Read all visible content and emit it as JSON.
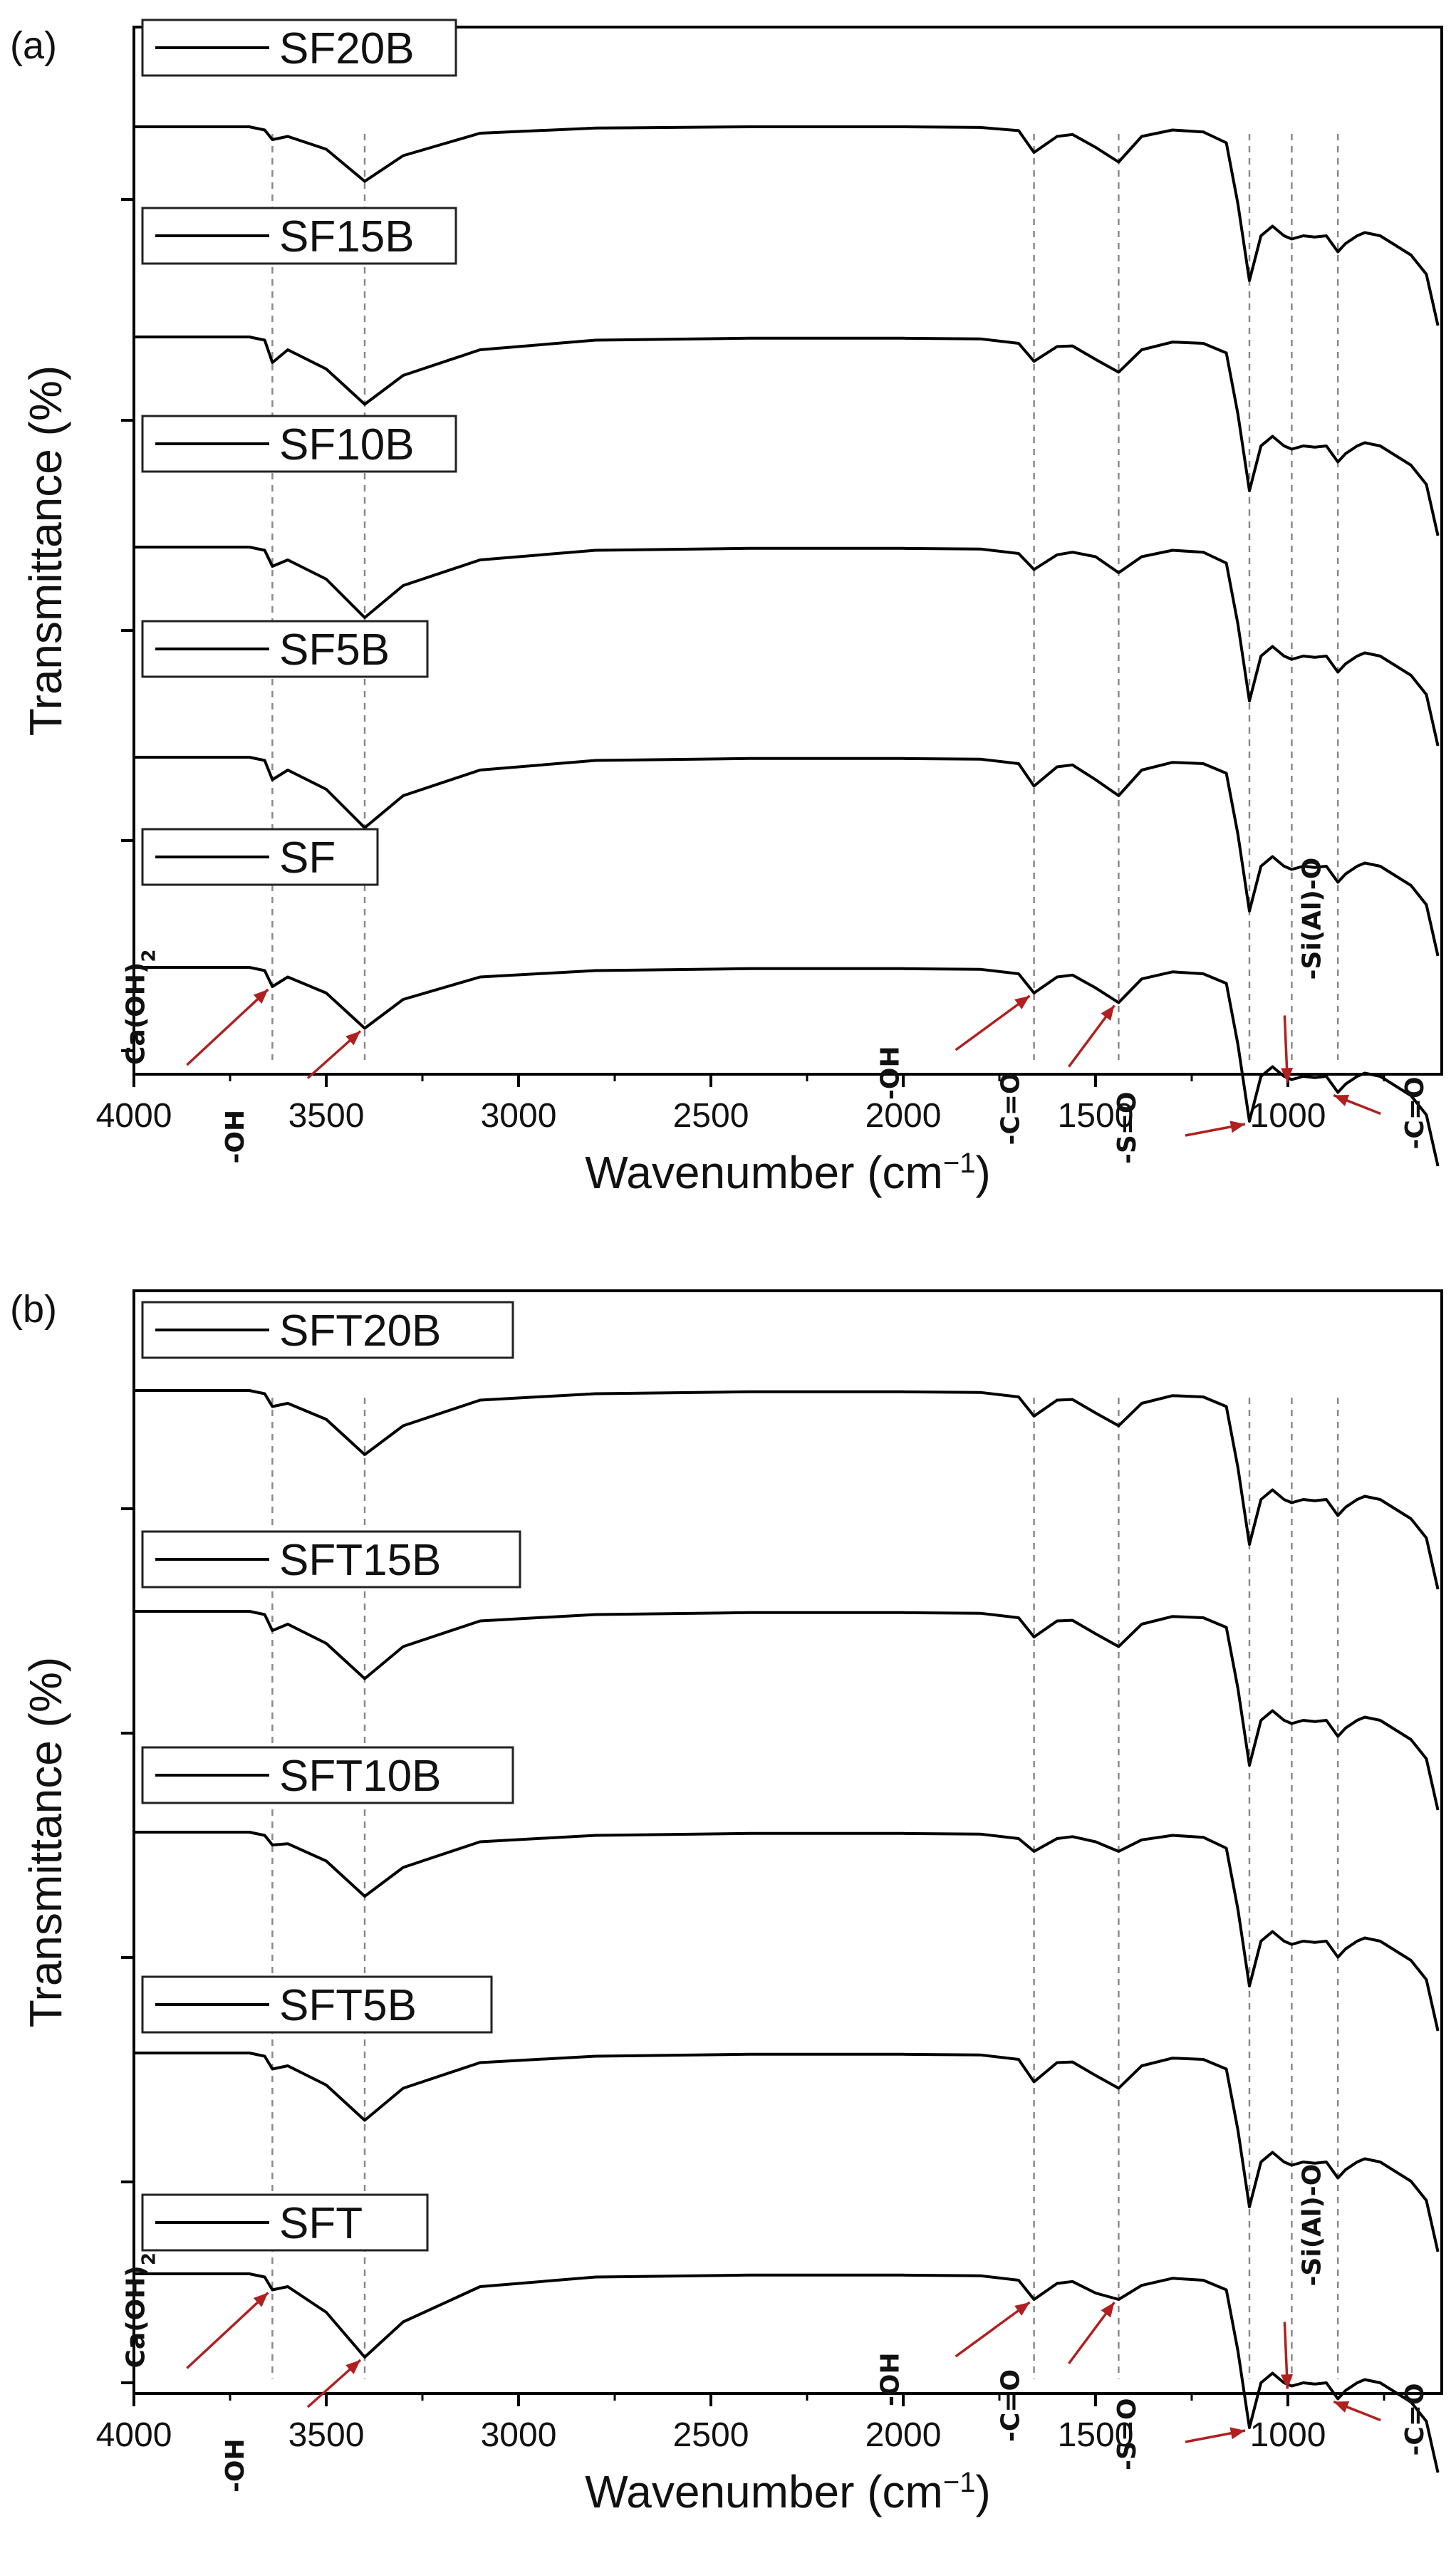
{
  "chart_data": [
    {
      "type": "line",
      "panel_label": "(a)",
      "xlabel": "Wavenumber (cm",
      "xlabel_sup": "−1",
      "xlabel_tail": ")",
      "ylabel": "Transmittance (%)",
      "xlim": [
        4000,
        600
      ],
      "x_reversed": true,
      "x_ticks": [
        "4000",
        "3500",
        "3000",
        "2500",
        "2000",
        "1500",
        "1000"
      ],
      "x_tick_values": [
        4000,
        3500,
        3000,
        2500,
        2000,
        1500,
        1000
      ],
      "legend_placement": "upper-left of each trace",
      "reference_lines_cm1": [
        3640,
        3400,
        1660,
        1440,
        1100,
        990,
        870
      ],
      "series": [
        {
          "name": "SF20B",
          "x": [
            4000,
            3700,
            3660,
            3640,
            3600,
            3500,
            3400,
            3300,
            3100,
            2800,
            2400,
            2000,
            1800,
            1700,
            1660,
            1600,
            1560,
            1500,
            1440,
            1380,
            1300,
            1220,
            1160,
            1130,
            1100,
            1070,
            1040,
            1010,
            990,
            960,
            930,
            900,
            870,
            850,
            820,
            800,
            760,
            720,
            680,
            640,
            610
          ],
          "y": [
            97.0,
            97.0,
            96.5,
            95.0,
            95.5,
            93.5,
            88.5,
            92.5,
            96.0,
            96.8,
            97.0,
            97.0,
            96.9,
            96.4,
            93.0,
            95.5,
            95.8,
            93.8,
            91.5,
            95.5,
            96.5,
            96.2,
            94.5,
            85.0,
            73.0,
            80.0,
            81.5,
            80.0,
            79.5,
            80.0,
            79.8,
            80.0,
            77.5,
            78.8,
            80.0,
            80.5,
            80.0,
            78.5,
            77.0,
            74.0,
            66.0
          ]
        },
        {
          "name": "SF15B",
          "x": [
            4000,
            3700,
            3660,
            3640,
            3600,
            3500,
            3400,
            3300,
            3100,
            2800,
            2400,
            2000,
            1800,
            1700,
            1660,
            1600,
            1560,
            1500,
            1440,
            1380,
            1300,
            1220,
            1160,
            1130,
            1100,
            1070,
            1040,
            1010,
            990,
            960,
            930,
            900,
            870,
            850,
            820,
            800,
            760,
            720,
            680,
            640,
            610
          ],
          "y": [
            97.0,
            97.0,
            96.5,
            93.0,
            95.0,
            92.0,
            86.5,
            91.0,
            95.0,
            96.5,
            96.8,
            96.8,
            96.7,
            96.0,
            93.2,
            95.5,
            95.6,
            93.5,
            91.5,
            95.0,
            96.2,
            96.0,
            94.5,
            85.0,
            73.0,
            80.0,
            81.5,
            80.0,
            79.5,
            80.0,
            79.8,
            80.0,
            77.5,
            78.8,
            80.0,
            80.5,
            80.0,
            78.5,
            77.0,
            74.0,
            66.0
          ]
        },
        {
          "name": "SF10B",
          "x": [
            4000,
            3700,
            3660,
            3640,
            3600,
            3500,
            3400,
            3300,
            3100,
            2800,
            2400,
            2000,
            1800,
            1700,
            1660,
            1600,
            1560,
            1500,
            1440,
            1380,
            1300,
            1220,
            1160,
            1130,
            1100,
            1070,
            1040,
            1010,
            990,
            960,
            930,
            900,
            870,
            850,
            820,
            800,
            760,
            720,
            680,
            640,
            610
          ],
          "y": [
            97.0,
            97.0,
            96.5,
            94.0,
            95.0,
            92.0,
            86.0,
            91.0,
            95.0,
            96.5,
            96.8,
            96.8,
            96.7,
            96.0,
            93.5,
            95.8,
            96.2,
            95.5,
            93.0,
            95.5,
            96.5,
            96.2,
            94.5,
            85.0,
            73.0,
            80.0,
            81.5,
            80.0,
            79.5,
            80.0,
            79.8,
            80.0,
            77.5,
            78.8,
            80.0,
            80.5,
            80.0,
            78.5,
            77.0,
            74.0,
            66.0
          ]
        },
        {
          "name": "SF5B",
          "x": [
            4000,
            3700,
            3660,
            3640,
            3600,
            3500,
            3400,
            3300,
            3100,
            2800,
            2400,
            2000,
            1800,
            1700,
            1660,
            1600,
            1560,
            1500,
            1440,
            1380,
            1300,
            1220,
            1160,
            1130,
            1100,
            1070,
            1040,
            1010,
            990,
            960,
            930,
            900,
            870,
            850,
            820,
            800,
            760,
            720,
            680,
            640,
            610
          ],
          "y": [
            97.0,
            97.0,
            96.5,
            93.5,
            95.0,
            92.0,
            86.0,
            91.0,
            95.0,
            96.5,
            96.8,
            96.8,
            96.7,
            96.0,
            92.5,
            95.5,
            95.8,
            93.5,
            91.0,
            95.0,
            96.2,
            96.0,
            94.5,
            85.0,
            73.0,
            80.0,
            81.5,
            80.0,
            79.5,
            80.0,
            79.8,
            80.0,
            77.5,
            78.8,
            80.0,
            80.5,
            80.0,
            78.5,
            77.0,
            74.0,
            66.0
          ]
        },
        {
          "name": "SF",
          "x": [
            4000,
            3700,
            3660,
            3640,
            3600,
            3500,
            3400,
            3300,
            3100,
            2800,
            2400,
            2000,
            1800,
            1700,
            1660,
            1600,
            1560,
            1500,
            1440,
            1380,
            1300,
            1220,
            1160,
            1130,
            1100,
            1070,
            1040,
            1010,
            990,
            960,
            930,
            900,
            870,
            850,
            820,
            800,
            760,
            720,
            680,
            640,
            610
          ],
          "y": [
            97.0,
            97.0,
            96.5,
            94.0,
            95.5,
            93.0,
            87.5,
            92.0,
            95.5,
            96.5,
            96.8,
            96.8,
            96.7,
            96.0,
            93.0,
            95.5,
            95.8,
            93.8,
            91.5,
            95.2,
            96.3,
            96.0,
            94.5,
            85.0,
            73.0,
            80.0,
            81.5,
            80.0,
            79.5,
            80.0,
            79.8,
            80.0,
            77.5,
            78.8,
            80.0,
            80.5,
            80.0,
            78.5,
            77.0,
            74.0,
            66.0
          ]
        }
      ],
      "annotations": [
        {
          "text": "Ca(OH)",
          "sub": "2",
          "x": 3640
        },
        {
          "text": "-OH",
          "x": 3400
        },
        {
          "text": "-OH",
          "x": 1660
        },
        {
          "text": "-C=O",
          "x": 1440
        },
        {
          "text": "-S=O",
          "x": 1100
        },
        {
          "text": "-Si(Al)-O",
          "x": 990
        },
        {
          "text": "-C=O",
          "x": 870
        }
      ]
    },
    {
      "type": "line",
      "panel_label": "(b)",
      "xlabel": "Wavenumber (cm",
      "xlabel_sup": "−1",
      "xlabel_tail": ")",
      "ylabel": "Transmittance (%)",
      "xlim": [
        4000,
        600
      ],
      "x_reversed": true,
      "x_ticks": [
        "4000",
        "3500",
        "3000",
        "2500",
        "2000",
        "1500",
        "1000"
      ],
      "x_tick_values": [
        4000,
        3500,
        3000,
        2500,
        2000,
        1500,
        1000
      ],
      "legend_placement": "upper-left of each trace",
      "reference_lines_cm1": [
        3640,
        3400,
        1660,
        1440,
        1100,
        990,
        870
      ],
      "series": [
        {
          "name": "SFT20B",
          "x": [
            4000,
            3700,
            3660,
            3640,
            3600,
            3500,
            3400,
            3300,
            3100,
            2800,
            2400,
            2000,
            1800,
            1700,
            1660,
            1600,
            1560,
            1500,
            1440,
            1380,
            1300,
            1220,
            1160,
            1130,
            1100,
            1070,
            1040,
            1010,
            990,
            960,
            930,
            900,
            870,
            850,
            820,
            800,
            760,
            720,
            680,
            640,
            610
          ],
          "y": [
            97.0,
            97.0,
            96.5,
            94.5,
            95.0,
            92.5,
            87.0,
            91.5,
            95.5,
            96.5,
            96.8,
            96.8,
            96.7,
            96.0,
            93.0,
            95.5,
            95.6,
            93.5,
            91.5,
            95.0,
            96.2,
            96.0,
            94.5,
            85.0,
            73.0,
            80.0,
            81.5,
            80.0,
            79.5,
            80.0,
            79.8,
            80.0,
            77.5,
            78.8,
            80.0,
            80.5,
            80.0,
            78.5,
            77.0,
            74.0,
            66.0
          ]
        },
        {
          "name": "SFT15B",
          "x": [
            4000,
            3700,
            3660,
            3640,
            3600,
            3500,
            3400,
            3300,
            3100,
            2800,
            2400,
            2000,
            1800,
            1700,
            1660,
            1600,
            1560,
            1500,
            1440,
            1380,
            1300,
            1220,
            1160,
            1130,
            1100,
            1070,
            1040,
            1010,
            990,
            960,
            930,
            900,
            870,
            850,
            820,
            800,
            760,
            720,
            680,
            640,
            610
          ],
          "y": [
            97.0,
            97.0,
            96.5,
            94.0,
            95.0,
            92.0,
            86.5,
            91.5,
            95.5,
            96.5,
            96.8,
            96.8,
            96.7,
            96.0,
            93.0,
            95.5,
            95.6,
            93.5,
            91.5,
            95.0,
            96.2,
            96.0,
            94.5,
            85.0,
            73.0,
            80.0,
            81.5,
            80.0,
            79.5,
            80.0,
            79.8,
            80.0,
            77.5,
            78.8,
            80.0,
            80.5,
            80.0,
            78.5,
            77.0,
            74.0,
            66.0
          ]
        },
        {
          "name": "SFT10B",
          "x": [
            4000,
            3700,
            3660,
            3640,
            3600,
            3500,
            3400,
            3300,
            3100,
            2800,
            2400,
            2000,
            1800,
            1700,
            1660,
            1600,
            1560,
            1500,
            1440,
            1380,
            1300,
            1220,
            1160,
            1130,
            1100,
            1070,
            1040,
            1010,
            990,
            960,
            930,
            900,
            870,
            850,
            820,
            800,
            760,
            720,
            680,
            640,
            610
          ],
          "y": [
            97.0,
            97.0,
            96.5,
            95.0,
            95.2,
            92.5,
            87.0,
            91.5,
            95.5,
            96.5,
            96.8,
            96.8,
            96.7,
            96.0,
            94.0,
            96.0,
            96.3,
            95.5,
            94.0,
            95.8,
            96.5,
            96.2,
            94.5,
            85.0,
            73.0,
            80.0,
            81.5,
            80.0,
            79.5,
            80.0,
            79.8,
            80.0,
            77.5,
            78.8,
            80.0,
            80.5,
            80.0,
            78.5,
            77.0,
            74.0,
            66.0
          ]
        },
        {
          "name": "SFT5B",
          "x": [
            4000,
            3700,
            3660,
            3640,
            3600,
            3500,
            3400,
            3300,
            3100,
            2800,
            2400,
            2000,
            1800,
            1700,
            1660,
            1600,
            1560,
            1500,
            1440,
            1380,
            1300,
            1220,
            1160,
            1130,
            1100,
            1070,
            1040,
            1010,
            990,
            960,
            930,
            900,
            870,
            850,
            820,
            800,
            760,
            720,
            680,
            640,
            610
          ],
          "y": [
            97.0,
            97.0,
            96.5,
            94.5,
            95.0,
            92.0,
            86.5,
            91.5,
            95.5,
            96.5,
            96.8,
            96.8,
            96.7,
            96.0,
            92.5,
            95.5,
            95.6,
            93.5,
            91.5,
            95.0,
            96.2,
            96.0,
            94.5,
            85.0,
            73.0,
            80.0,
            81.5,
            80.0,
            79.5,
            80.0,
            79.8,
            80.0,
            77.5,
            78.8,
            80.0,
            80.5,
            80.0,
            78.5,
            77.0,
            74.0,
            66.0
          ]
        },
        {
          "name": "SFT",
          "x": [
            4000,
            3700,
            3660,
            3640,
            3600,
            3500,
            3400,
            3300,
            3100,
            2800,
            2400,
            2000,
            1800,
            1700,
            1660,
            1600,
            1560,
            1500,
            1440,
            1380,
            1300,
            1220,
            1160,
            1130,
            1100,
            1070,
            1040,
            1010,
            990,
            960,
            930,
            900,
            870,
            850,
            820,
            800,
            760,
            720,
            680,
            640,
            610
          ],
          "y": [
            97.0,
            97.0,
            96.5,
            94.5,
            95.0,
            91.0,
            84.0,
            89.5,
            95.0,
            96.5,
            96.8,
            96.8,
            96.7,
            96.0,
            93.0,
            95.5,
            95.8,
            94.0,
            93.0,
            95.2,
            96.3,
            96.0,
            94.5,
            85.0,
            73.0,
            80.0,
            81.5,
            80.0,
            79.5,
            80.0,
            79.8,
            80.0,
            77.5,
            78.8,
            80.0,
            80.5,
            80.0,
            78.5,
            77.0,
            74.0,
            66.0
          ]
        }
      ],
      "annotations": [
        {
          "text": "Ca(OH)",
          "sub": "2",
          "x": 3640
        },
        {
          "text": "-OH",
          "x": 3400
        },
        {
          "text": "-OH",
          "x": 1660
        },
        {
          "text": "-C=O",
          "x": 1440
        },
        {
          "text": "-S=O",
          "x": 1100
        },
        {
          "text": "-Si(Al)-O",
          "x": 990
        },
        {
          "text": "-C=O",
          "x": 870
        }
      ]
    }
  ]
}
